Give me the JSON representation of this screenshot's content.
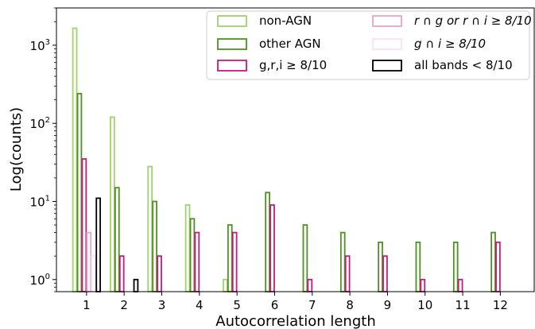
{
  "chart_data": {
    "type": "bar",
    "xlabel": "Autocorrelation length",
    "ylabel": "Log(counts)",
    "yscale": "log",
    "ylim": [
      0.7,
      3000
    ],
    "xlim": [
      0.2,
      12.9
    ],
    "x_ticks": [
      1,
      2,
      3,
      4,
      5,
      6,
      7,
      8,
      9,
      10,
      11,
      12
    ],
    "y_ticks": [
      {
        "value": 1,
        "base": "10",
        "exp": "0"
      },
      {
        "value": 10,
        "base": "10",
        "exp": "1"
      },
      {
        "value": 100,
        "base": "10",
        "exp": "2"
      },
      {
        "value": 1000,
        "base": "10",
        "exp": "3"
      }
    ],
    "bar_style": "unfilled",
    "legend_position": "top-right",
    "series": [
      {
        "name": "non-AGN",
        "color": "#9ed36a",
        "x": [
          1,
          2,
          3,
          4,
          5
        ],
        "values": [
          1650,
          120,
          28,
          9,
          1
        ]
      },
      {
        "name": "other AGN",
        "color": "#4d9221",
        "x": [
          1,
          2,
          3,
          4,
          5,
          6,
          7,
          8,
          9,
          10,
          11,
          12
        ],
        "values": [
          240,
          15,
          10,
          6,
          5,
          13,
          5,
          4,
          3,
          3,
          3,
          4
        ]
      },
      {
        "name": "g,r,i ≥ 8/10",
        "color": "#c51b7d",
        "x": [
          1,
          2,
          3,
          4,
          5,
          6,
          7,
          8,
          9,
          10,
          11,
          12
        ],
        "values": [
          35,
          2,
          2,
          4,
          4,
          9,
          1,
          2,
          2,
          1,
          1,
          3
        ]
      },
      {
        "name": "r ∩ g or r ∩ i ≥ 8/10",
        "color": "#e9a3c9",
        "x": [
          1
        ],
        "values": [
          4
        ]
      },
      {
        "name": "g ∩ i ≥ 8/10",
        "color": "#fde0ef",
        "x": [
          1
        ],
        "values": [
          2
        ]
      },
      {
        "name": "all bands < 8/10",
        "color": "#000000",
        "x": [
          1,
          2
        ],
        "values": [
          11,
          1
        ]
      }
    ],
    "legend": [
      {
        "label": "non-AGN",
        "color": "#9ed36a",
        "italic": false
      },
      {
        "label": "other AGN",
        "color": "#4d9221",
        "italic": false
      },
      {
        "label": "g,r,i ≥ 8/10",
        "color": "#c51b7d",
        "italic": false
      },
      {
        "label": "r ∩ g or r ∩ i ≥ 8/10",
        "color": "#e9a3c9",
        "italic": true
      },
      {
        "label": "g ∩ i ≥ 8/10",
        "color": "#fde0ef",
        "italic": true
      },
      {
        "label": "all bands < 8/10",
        "color": "#000000",
        "italic": false
      }
    ]
  }
}
